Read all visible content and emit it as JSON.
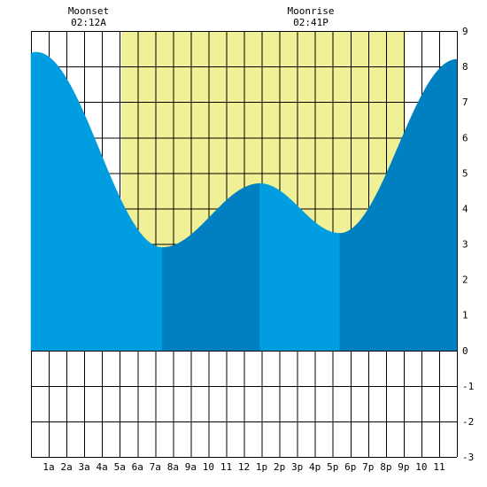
{
  "moon": {
    "moonset_label": "Moonset",
    "moonset_time": "02:12A",
    "moonrise_label": "Moonrise",
    "moonrise_time": "02:41P"
  },
  "chart_data": {
    "type": "area",
    "title": "",
    "xlabel": "",
    "ylabel": "",
    "xlim": [
      0,
      24
    ],
    "ylim": [
      -3,
      9
    ],
    "grid": true,
    "x_ticks": [
      1,
      2,
      3,
      4,
      5,
      6,
      7,
      8,
      9,
      10,
      11,
      12,
      13,
      14,
      15,
      16,
      17,
      18,
      19,
      20,
      21,
      22,
      23
    ],
    "x_tick_labels": [
      "1a",
      "2a",
      "3a",
      "4a",
      "5a",
      "6a",
      "7a",
      "8a",
      "9a",
      "10",
      "11",
      "12",
      "1p",
      "2p",
      "3p",
      "4p",
      "5p",
      "6p",
      "7p",
      "8p",
      "9p",
      "10",
      "11"
    ],
    "y_ticks": [
      -3,
      -2,
      -1,
      0,
      1,
      2,
      3,
      4,
      5,
      6,
      7,
      8,
      9
    ],
    "y_tick_labels": [
      "-3",
      "-2",
      "-1",
      "0",
      "1",
      "2",
      "3",
      "4",
      "5",
      "6",
      "7",
      "8",
      "9"
    ],
    "daylight": [
      5.1,
      21.1
    ],
    "tide_extrema": [
      {
        "time": 0.3,
        "height": 8.4
      },
      {
        "time": 7.4,
        "height": 2.9
      },
      {
        "time": 12.9,
        "height": 4.7
      },
      {
        "time": 17.4,
        "height": 3.3
      },
      {
        "time": 24.0,
        "height": 8.2
      }
    ],
    "tide_phases": [
      {
        "start": 0.0,
        "end": 7.4,
        "direction": "falling"
      },
      {
        "start": 7.4,
        "end": 12.9,
        "direction": "rising"
      },
      {
        "start": 12.9,
        "end": 17.4,
        "direction": "falling"
      },
      {
        "start": 17.4,
        "end": 24.0,
        "direction": "rising"
      }
    ],
    "colors": {
      "daylight": "#f0f096",
      "falling": "#009de0",
      "rising": "#0080c0",
      "grid": "#000000",
      "background": "#ffffff"
    }
  }
}
